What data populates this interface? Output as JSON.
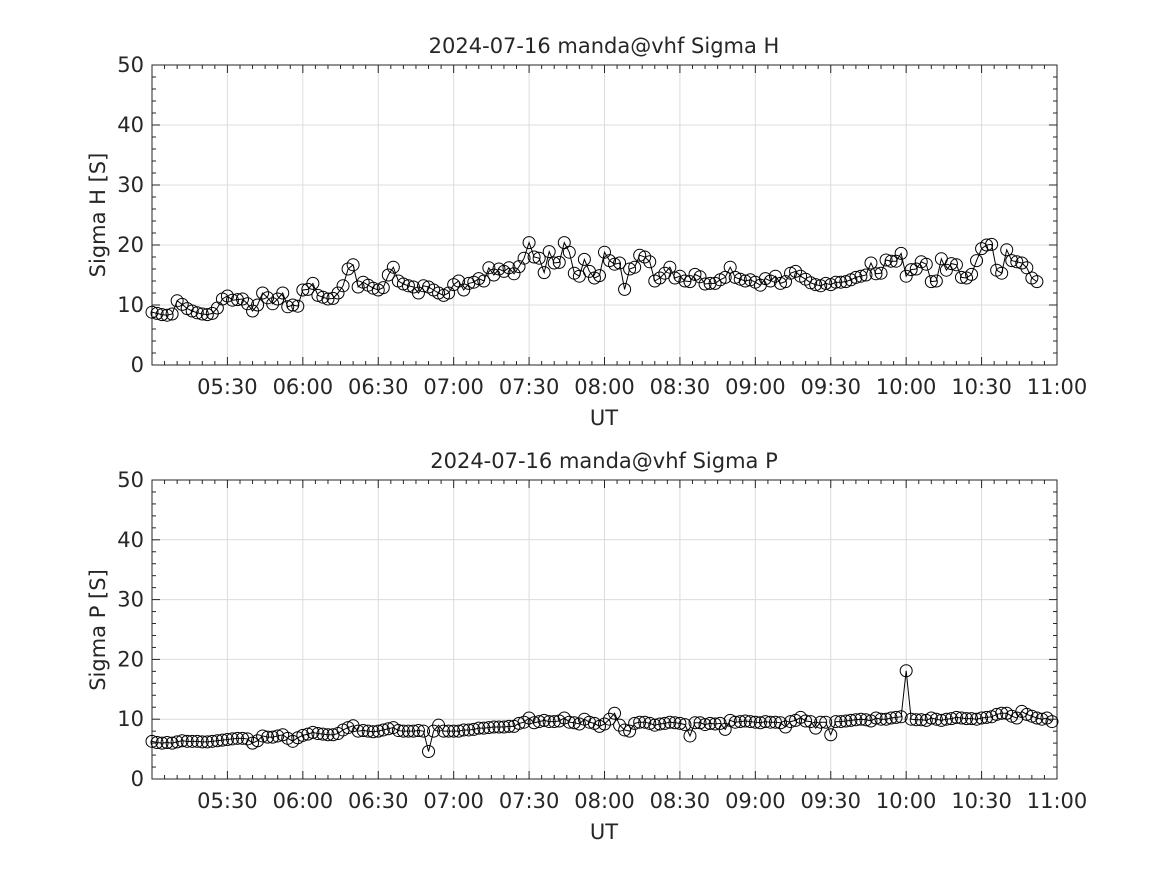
{
  "chart_data": [
    {
      "type": "line",
      "title": "2024-07-16  manda@vhf Sigma H",
      "xlabel": "UT",
      "ylabel": "Sigma H [S]",
      "xlim": [
        "05:00",
        "11:00"
      ],
      "ylim": [
        0,
        50
      ],
      "yticks": [
        "0",
        "10",
        "20",
        "30",
        "40",
        "50"
      ],
      "xticks": [
        "05:30",
        "06:00",
        "06:30",
        "07:00",
        "07:30",
        "08:00",
        "08:30",
        "09:00",
        "09:30",
        "10:00",
        "10:30",
        "11:00"
      ],
      "grid": true,
      "marker": "open-circle",
      "colors": {
        "line": "#000000",
        "grid": "#dcdcdc",
        "axes": "#262626"
      },
      "series": [
        {
          "x_start": "05:00",
          "x_step_minutes": 2,
          "values": [
            8.8,
            8.6,
            8.4,
            8.3,
            8.5,
            10.7,
            10.1,
            9.4,
            9.0,
            8.7,
            8.5,
            8.4,
            8.6,
            9.5,
            11.0,
            11.5,
            10.8,
            10.9,
            11.0,
            10.2,
            9.0,
            10.0,
            12.0,
            11.2,
            10.2,
            11.0,
            12.0,
            9.7,
            10.0,
            9.8,
            12.5,
            12.6,
            13.6,
            11.6,
            11.3,
            11.0,
            11.1,
            12.0,
            13.2,
            16.0,
            16.7,
            13.0,
            13.8,
            13.3,
            12.8,
            12.5,
            12.9,
            15.0,
            16.3,
            14.0,
            13.5,
            13.2,
            13.0,
            12.0,
            13.2,
            13.0,
            12.5,
            12.0,
            11.6,
            12.0,
            13.4,
            14.0,
            12.5,
            13.6,
            13.8,
            14.4,
            14.0,
            16.2,
            15.0,
            16.0,
            15.6,
            16.2,
            15.2,
            16.4,
            17.8,
            20.4,
            18.0,
            17.8,
            15.4,
            18.9,
            17.0,
            17.1,
            20.4,
            18.8,
            15.3,
            14.8,
            17.6,
            15.6,
            14.5,
            14.9,
            18.8,
            17.4,
            16.8,
            17.0,
            12.6,
            16.0,
            16.3,
            18.3,
            18.0,
            17.2,
            14.0,
            14.5,
            15.3,
            16.3,
            14.5,
            14.8,
            14.0,
            13.9,
            15.1,
            14.7,
            13.5,
            13.6,
            13.6,
            14.2,
            14.6,
            16.3,
            14.6,
            14.3,
            14.0,
            14.2,
            13.8,
            13.3,
            14.4,
            14.0,
            14.8,
            13.6,
            13.9,
            15.3,
            15.6,
            14.8,
            14.3,
            13.7,
            13.4,
            13.2,
            13.6,
            13.4,
            13.8,
            13.8,
            13.9,
            14.2,
            14.6,
            14.8,
            15.0,
            17.0,
            15.2,
            15.3,
            17.5,
            17.3,
            17.3,
            18.6,
            14.8,
            15.9,
            16.0,
            17.2,
            16.8,
            13.9,
            14.0,
            17.7,
            15.8,
            16.9,
            16.7,
            14.6,
            14.5,
            15.1,
            17.4,
            19.4,
            20.0,
            20.1,
            15.8,
            15.3,
            19.2,
            17.4,
            17.2,
            17.0,
            16.2,
            14.5,
            13.9
          ]
        }
      ]
    },
    {
      "type": "line",
      "title": "2024-07-16  manda@vhf Sigma P",
      "xlabel": "UT",
      "ylabel": "Sigma P [S]",
      "xlim": [
        "05:00",
        "11:00"
      ],
      "ylim": [
        0,
        50
      ],
      "yticks": [
        "0",
        "10",
        "20",
        "30",
        "40",
        "50"
      ],
      "xticks": [
        "05:30",
        "06:00",
        "06:30",
        "07:00",
        "07:30",
        "08:00",
        "08:30",
        "09:00",
        "09:30",
        "10:00",
        "10:30",
        "11:00"
      ],
      "grid": true,
      "marker": "open-circle",
      "colors": {
        "line": "#000000",
        "grid": "#dcdcdc",
        "axes": "#262626"
      },
      "series": [
        {
          "x_start": "05:00",
          "x_step_minutes": 2,
          "values": [
            6.3,
            6.1,
            6.0,
            6.1,
            6.0,
            6.2,
            6.4,
            6.3,
            6.3,
            6.3,
            6.2,
            6.2,
            6.3,
            6.4,
            6.5,
            6.6,
            6.7,
            6.8,
            6.8,
            6.7,
            6.0,
            6.4,
            7.2,
            7.0,
            7.0,
            7.2,
            7.4,
            6.8,
            6.3,
            6.9,
            7.3,
            7.5,
            7.8,
            7.6,
            7.5,
            7.4,
            7.4,
            7.6,
            8.2,
            8.6,
            8.9,
            8.0,
            8.1,
            8.0,
            7.9,
            8.0,
            8.2,
            8.4,
            8.6,
            8.1,
            8.0,
            8.0,
            8.0,
            8.1,
            8.0,
            4.6,
            8.0,
            9.0,
            8.0,
            8.0,
            8.0,
            8.0,
            8.2,
            8.2,
            8.3,
            8.5,
            8.5,
            8.6,
            8.7,
            8.7,
            8.7,
            8.8,
            8.8,
            9.3,
            9.5,
            10.2,
            9.4,
            9.6,
            9.8,
            9.6,
            9.6,
            9.7,
            10.2,
            9.5,
            9.4,
            9.2,
            10.0,
            9.5,
            9.3,
            8.8,
            9.2,
            10.0,
            11.0,
            9.0,
            8.2,
            8.0,
            9.3,
            9.5,
            9.5,
            9.3,
            9.0,
            9.2,
            9.3,
            9.5,
            9.4,
            9.3,
            9.1,
            7.2,
            9.4,
            9.4,
            9.1,
            9.3,
            9.2,
            9.3,
            8.3,
            9.8,
            9.5,
            9.6,
            9.7,
            9.6,
            9.5,
            9.4,
            9.6,
            9.5,
            9.5,
            9.4,
            8.7,
            9.6,
            9.8,
            10.3,
            9.7,
            9.6,
            8.5,
            9.5,
            9.5,
            7.4,
            9.6,
            9.6,
            9.7,
            9.8,
            9.9,
            10.0,
            9.9,
            9.7,
            10.2,
            10.0,
            10.0,
            10.2,
            10.3,
            10.4,
            18.1,
            10.0,
            9.9,
            9.9,
            9.8,
            10.2,
            10.0,
            9.8,
            10.0,
            10.1,
            10.3,
            10.2,
            10.1,
            10.1,
            10.0,
            10.2,
            10.3,
            10.4,
            10.8,
            11.0,
            11.0,
            10.5,
            10.2,
            11.3,
            10.8,
            10.5,
            10.2,
            10.0,
            10.2,
            9.6
          ]
        }
      ]
    }
  ]
}
